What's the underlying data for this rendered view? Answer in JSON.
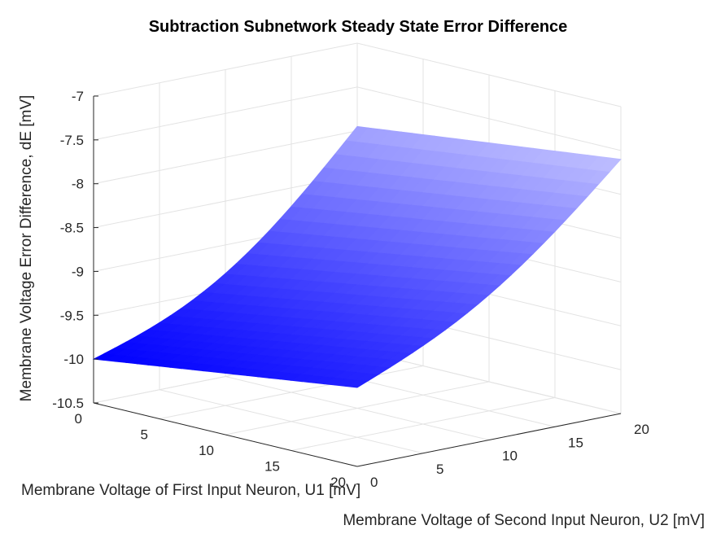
{
  "chart_data": {
    "type": "surface",
    "title": "Subtraction Subnetwork Steady State Error Difference",
    "xlabel": "Membrane Voltage of First Input Neuron, U1 [mV]",
    "ylabel": "Membrane Voltage of Second Input Neuron, U2 [mV]",
    "zlabel": "Membrane Voltage Error Difference, dE [mV]",
    "xlim": [
      0,
      20
    ],
    "ylim": [
      0,
      20
    ],
    "zlim": [
      -10.5,
      -7
    ],
    "x_ticks": [
      "0",
      "5",
      "10",
      "15",
      "20"
    ],
    "y_ticks": [
      "0",
      "5",
      "10",
      "15",
      "20"
    ],
    "z_ticks": [
      "-7",
      "-7.5",
      "-8",
      "-8.5",
      "-9",
      "-9.5",
      "-10",
      "-10.5"
    ],
    "grid": true,
    "colors": {
      "low": "#0000ff",
      "high": "#c0c0ff",
      "grid": "#e3e3e3",
      "axis": "#262626"
    },
    "corner_values": [
      {
        "u1": 0,
        "u2": 0,
        "dE": -10.0
      },
      {
        "u1": 20,
        "u2": 0,
        "dE": -9.6
      },
      {
        "u1": 0,
        "u2": 20,
        "dE": -7.95
      },
      {
        "u1": 20,
        "u2": 20,
        "dE": -7.6
      }
    ]
  }
}
